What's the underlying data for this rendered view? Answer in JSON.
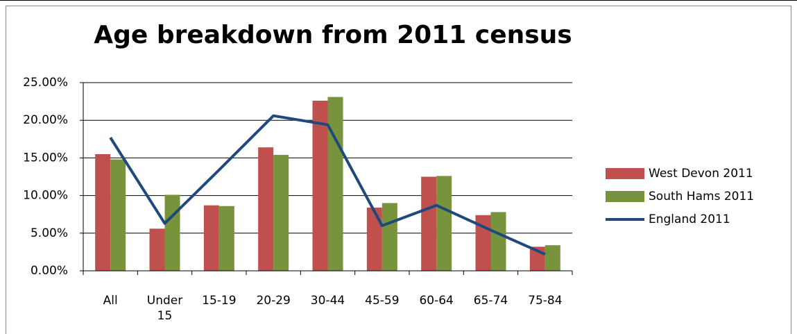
{
  "chart_data": {
    "type": "bar",
    "title": "Age breakdown from 2011 census",
    "categories": [
      "All",
      "Under 15",
      "15-19",
      "20-29",
      "30-44",
      "45-59",
      "60-64",
      "65-74",
      "75-84"
    ],
    "series": [
      {
        "name": "West Devon 2011",
        "type": "bar",
        "color": "#c0504d",
        "values": [
          15.5,
          5.6,
          8.7,
          16.4,
          22.6,
          8.4,
          12.5,
          7.4,
          3.2
        ]
      },
      {
        "name": "South Hams 2011",
        "type": "bar",
        "color": "#77933c",
        "values": [
          14.8,
          10.1,
          8.6,
          15.4,
          23.1,
          9.0,
          12.6,
          7.8,
          3.4
        ]
      },
      {
        "name": "England 2011",
        "type": "line",
        "color": "#1f497d",
        "values": [
          17.7,
          6.3,
          13.4,
          20.6,
          19.4,
          6.0,
          8.7,
          5.4,
          2.2
        ]
      }
    ],
    "ylim": [
      0,
      25
    ],
    "yticks": [
      {
        "value": 0,
        "label": "0.00%"
      },
      {
        "value": 5,
        "label": "5.00%"
      },
      {
        "value": 10,
        "label": "10.00%"
      },
      {
        "value": 15,
        "label": "15.00%"
      },
      {
        "value": 20,
        "label": "20.00%"
      },
      {
        "value": 25,
        "label": "25.00%"
      }
    ],
    "grid": true,
    "legend": "right"
  }
}
